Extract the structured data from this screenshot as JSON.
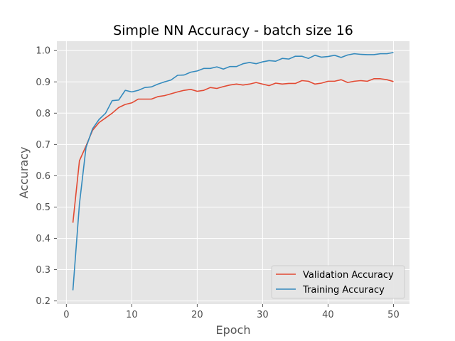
{
  "chart_data": {
    "type": "line",
    "title": "Simple NN Accuracy - batch size 16",
    "xlabel": "Epoch",
    "ylabel": "Accuracy",
    "xlim": [
      -1.45,
      52.45
    ],
    "ylim": [
      0.19,
      1.03
    ],
    "xticks": [
      0,
      10,
      20,
      30,
      40,
      50
    ],
    "yticks": [
      0.2,
      0.3,
      0.4,
      0.5,
      0.6,
      0.7,
      0.8,
      0.9,
      1.0
    ],
    "xtick_labels": [
      "0",
      "10",
      "20",
      "30",
      "40",
      "50"
    ],
    "ytick_labels": [
      "0.2",
      "0.3",
      "0.4",
      "0.5",
      "0.6",
      "0.7",
      "0.8",
      "0.9",
      "1.0"
    ],
    "grid": true,
    "legend_position": "lower-right",
    "x": [
      1,
      2,
      3,
      4,
      5,
      6,
      7,
      8,
      9,
      10,
      11,
      12,
      13,
      14,
      15,
      16,
      17,
      18,
      19,
      20,
      21,
      22,
      23,
      24,
      25,
      26,
      27,
      28,
      29,
      30,
      31,
      32,
      33,
      34,
      35,
      36,
      37,
      38,
      39,
      40,
      41,
      42,
      43,
      44,
      45,
      46,
      47,
      48,
      49,
      50
    ],
    "series": [
      {
        "name": "Validation Accuracy",
        "color": "#E24A33",
        "values": [
          0.45,
          0.648,
          0.695,
          0.745,
          0.77,
          0.785,
          0.8,
          0.818,
          0.828,
          0.833,
          0.845,
          0.845,
          0.845,
          0.853,
          0.856,
          0.862,
          0.868,
          0.873,
          0.876,
          0.87,
          0.873,
          0.882,
          0.879,
          0.885,
          0.89,
          0.893,
          0.89,
          0.893,
          0.898,
          0.893,
          0.888,
          0.896,
          0.893,
          0.895,
          0.895,
          0.904,
          0.902,
          0.893,
          0.896,
          0.902,
          0.902,
          0.907,
          0.898,
          0.902,
          0.904,
          0.902,
          0.91,
          0.91,
          0.907,
          0.901
        ]
      },
      {
        "name": "Training Accuracy",
        "color": "#348ABD",
        "values": [
          0.234,
          0.51,
          0.69,
          0.75,
          0.78,
          0.8,
          0.84,
          0.842,
          0.873,
          0.868,
          0.873,
          0.882,
          0.884,
          0.893,
          0.9,
          0.906,
          0.921,
          0.922,
          0.931,
          0.935,
          0.943,
          0.943,
          0.948,
          0.941,
          0.949,
          0.949,
          0.958,
          0.962,
          0.958,
          0.964,
          0.968,
          0.966,
          0.975,
          0.973,
          0.982,
          0.982,
          0.975,
          0.985,
          0.979,
          0.981,
          0.985,
          0.978,
          0.986,
          0.99,
          0.988,
          0.987,
          0.987,
          0.99,
          0.99,
          0.994
        ]
      }
    ]
  }
}
